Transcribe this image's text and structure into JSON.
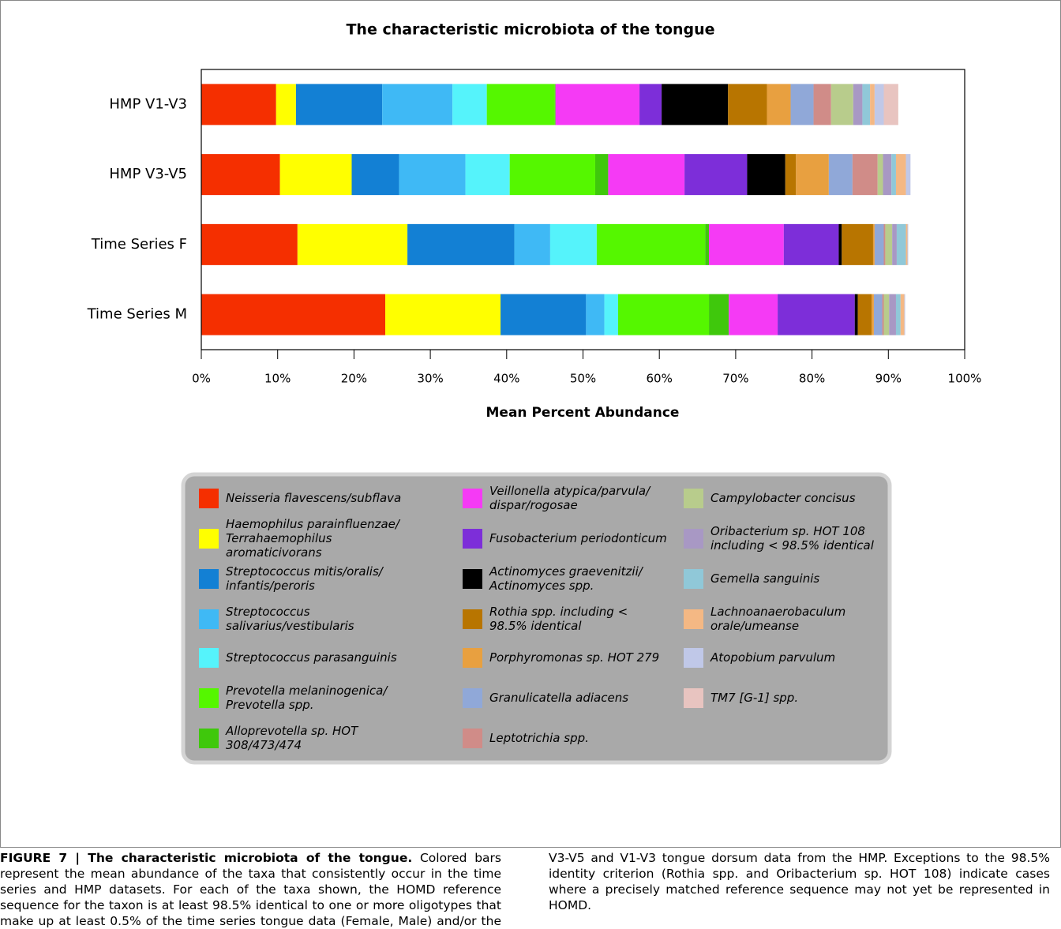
{
  "chart_data": {
    "type": "stacked_bar_horizontal",
    "title": "The characteristic microbiota of the tongue",
    "xlabel": "Mean Percent Abundance",
    "categories": [
      "HMP V1-V3",
      "HMP V3-V5",
      "Time Series F",
      "Time Series M"
    ],
    "xlim": [
      0,
      100
    ],
    "xticks": [
      {
        "value": 0,
        "label": "0%"
      },
      {
        "value": 10,
        "label": "10%"
      },
      {
        "value": 20,
        "label": "20%"
      },
      {
        "value": 30,
        "label": "30%"
      },
      {
        "value": 40,
        "label": "40%"
      },
      {
        "value": 50,
        "label": "50%"
      },
      {
        "value": 60,
        "label": "60%"
      },
      {
        "value": 70,
        "label": "70%"
      },
      {
        "value": 80,
        "label": "80%"
      },
      {
        "value": 90,
        "label": "90%"
      },
      {
        "value": 100,
        "label": "100%"
      }
    ],
    "series": [
      {
        "name": "Neisseria flavescens/subflava",
        "color": "#f52f00",
        "values": [
          9.8,
          10.3,
          12.6,
          24.1
        ]
      },
      {
        "name": "Haemophilus parainfluenzae/ Terrahaemophilus aromaticivorans",
        "color": "#ffff00",
        "values": [
          2.6,
          9.4,
          14.4,
          15.1
        ]
      },
      {
        "name": "Streptococcus mitis/oralis/ infantis/peroris",
        "color": "#1380d4",
        "values": [
          11.3,
          6.2,
          14.0,
          11.2
        ]
      },
      {
        "name": "Streptococcus salivarius/vestibularis",
        "color": "#3fb9f5",
        "values": [
          9.2,
          8.7,
          4.7,
          2.4
        ]
      },
      {
        "name": "Streptococcus parasanguinis",
        "color": "#55f3fb",
        "values": [
          4.5,
          5.8,
          6.1,
          1.8
        ]
      },
      {
        "name": "Prevotella melaninogenica/ Prevotella spp.",
        "color": "#55f700",
        "values": [
          8.9,
          11.2,
          14.2,
          11.9
        ]
      },
      {
        "name": "Alloprevotella sp. HOT 308/473/474",
        "color": "#3fc80c",
        "values": [
          0.1,
          1.7,
          0.5,
          2.6
        ]
      },
      {
        "name": "Veillonella atypica/parvula/ dispar/rogosae",
        "color": "#f53af5",
        "values": [
          11.0,
          10.0,
          9.8,
          6.4
        ]
      },
      {
        "name": "Fusobacterium periodonticum",
        "color": "#7d2ed9",
        "values": [
          2.9,
          8.2,
          7.2,
          10.1
        ]
      },
      {
        "name": "Actinomyces graevenitzii/ Actinomyces spp.",
        "color": "#000000",
        "values": [
          8.7,
          5.0,
          0.4,
          0.4
        ]
      },
      {
        "name": "Rothia spp. including < 98.5% identical",
        "color": "#b87500",
        "values": [
          5.1,
          1.4,
          4.1,
          1.8
        ]
      },
      {
        "name": "Porphyromonas sp. HOT 279",
        "color": "#e8a040",
        "values": [
          3.1,
          4.3,
          0.2,
          0.3
        ]
      },
      {
        "name": "Granulicatella adiacens",
        "color": "#90a8d8",
        "values": [
          3.0,
          3.1,
          1.2,
          1.1
        ]
      },
      {
        "name": "Leptotrichia spp.",
        "color": "#d08c88",
        "values": [
          2.3,
          3.3,
          0.2,
          0.2
        ]
      },
      {
        "name": "Campylobacter concisus",
        "color": "#b8cc8c",
        "values": [
          2.9,
          0.7,
          0.9,
          0.7
        ]
      },
      {
        "name": "Oribacterium sp. HOT 108 including < 98.5% identical",
        "color": "#a898c4",
        "values": [
          1.2,
          1.1,
          0.6,
          0.9
        ]
      },
      {
        "name": "Gemella sanguinis",
        "color": "#90c8d8",
        "values": [
          1.0,
          0.6,
          1.2,
          0.6
        ]
      },
      {
        "name": "Lachnoanaerobaculum orale/umeanse",
        "color": "#f4b884",
        "values": [
          0.6,
          1.3,
          0.2,
          0.5
        ]
      },
      {
        "name": "Atopobium parvulum",
        "color": "#c0c8e8",
        "values": [
          1.2,
          0.6,
          0.1,
          0.1
        ]
      },
      {
        "name": "TM7 [G-1] spp.",
        "color": "#e8c4c0",
        "values": [
          1.9,
          0,
          0,
          0
        ]
      }
    ]
  },
  "caption": {
    "label": "FIGURE 7 | The characteristic microbiota of the tongue.",
    "text": "Colored bars represent the mean abundance of the taxa that consistently occur in the time series and HMP datasets. For each of the taxa shown, the HOMD reference sequence for the taxon is at least 98.5% identical to one or more oligotypes that make up at least 0.5% of the time series tongue data (Female, Male) and/or the V3-V5 and V1-V3 tongue dorsum data from the HMP. Exceptions to the 98.5% identity criterion (Rothia spp. and Oribacterium sp. HOT 108) indicate cases where a precisely matched reference sequence may not yet be represented in HOMD."
  }
}
